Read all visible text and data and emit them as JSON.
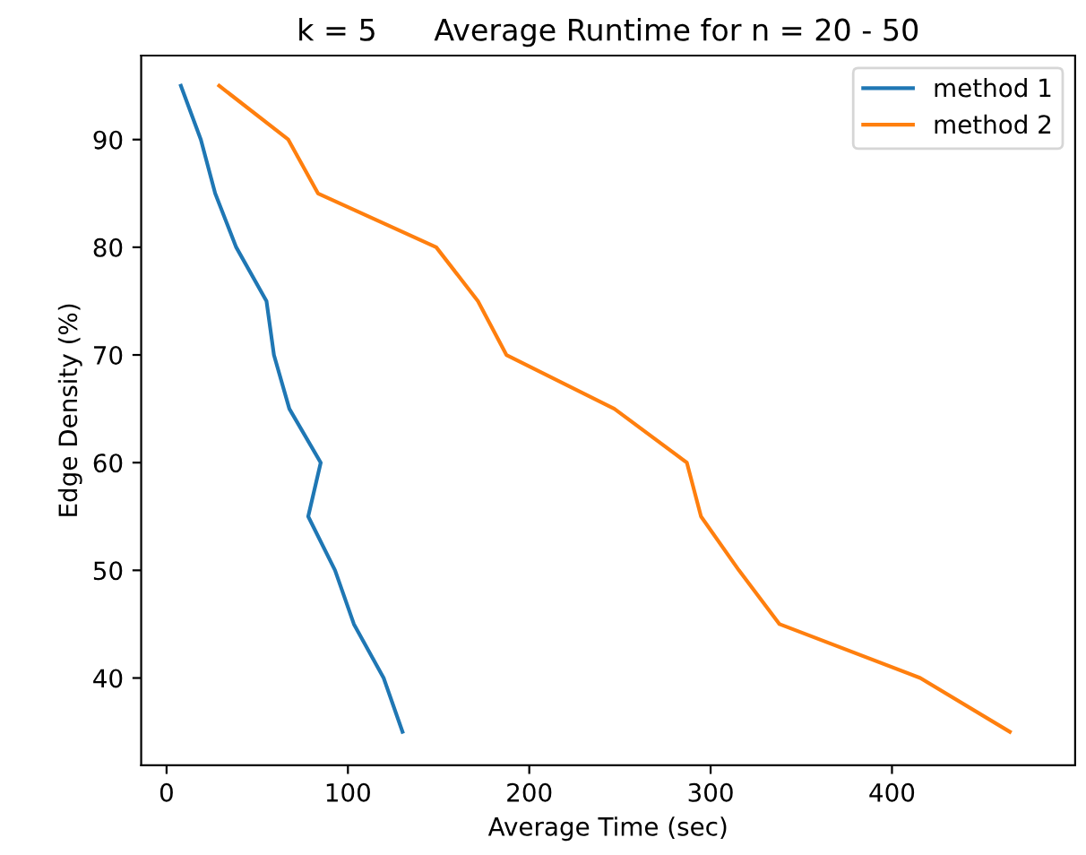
{
  "chart_data": {
    "type": "line",
    "title": "k = 5      Average Runtime for n = 20 - 50",
    "xlabel": "Average Time (sec)",
    "ylabel": "Edge Density (%)",
    "xlim": [
      -14,
      501
    ],
    "ylim": [
      31.9,
      97.8
    ],
    "xticks": [
      0,
      100,
      200,
      300,
      400
    ],
    "yticks": [
      40,
      50,
      60,
      70,
      80,
      90
    ],
    "legend": "top right",
    "grid": false,
    "series": [
      {
        "name": "method 1",
        "color": "#1f77b4",
        "x": [
          7.9,
          18.9,
          26.8,
          38.4,
          55.1,
          59.2,
          67.7,
          85,
          78.1,
          92.9,
          103.3,
          119.7,
          130.1
        ],
        "values": [
          95,
          90,
          85,
          80,
          75,
          70,
          65,
          60,
          55,
          50,
          45,
          40,
          35
        ]
      },
      {
        "name": "method 2",
        "color": "#ff7f0e",
        "x": [
          29,
          67.1,
          83.5,
          148.7,
          171.7,
          187.4,
          246.9,
          286.9,
          294.7,
          315.6,
          338,
          415.6,
          465
        ],
        "values": [
          95,
          90,
          85,
          80,
          75,
          70,
          65,
          60,
          55,
          50,
          45,
          40,
          35
        ]
      }
    ]
  }
}
